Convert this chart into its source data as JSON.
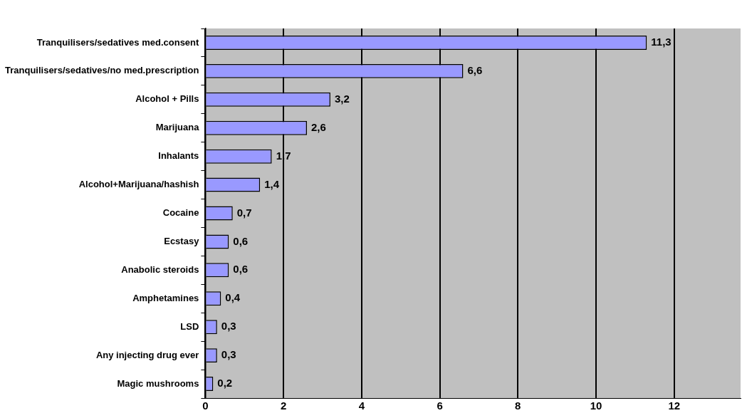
{
  "chart_data": {
    "type": "bar",
    "orientation": "horizontal",
    "categories": [
      "Tranquilisers/sedatives med.consent",
      "Tranquilisers/sedatives/no med.prescription",
      "Alcohol + Pills",
      "Marijuana",
      "Inhalants",
      "Alcohol+Marijuana/hashish",
      "Cocaine",
      "Ecstasy",
      "Anabolic steroids",
      "Amphetamines",
      "LSD",
      "Any injecting drug ever",
      "Magic mushrooms"
    ],
    "values": [
      11.3,
      6.6,
      3.2,
      2.6,
      1.7,
      1.4,
      0.7,
      0.6,
      0.6,
      0.4,
      0.3,
      0.3,
      0.2
    ],
    "value_labels": [
      "11,3",
      "6,6",
      "3,2",
      "2,6",
      "1,7",
      "1,4",
      "0,7",
      "0,6",
      "0,6",
      "0,4",
      "0,3",
      "0,3",
      "0,2"
    ],
    "color": "#9999ff",
    "xlim": [
      0,
      13.7
    ],
    "xticks": [
      0,
      2,
      4,
      6,
      8,
      10,
      12
    ],
    "grid": "x",
    "legend": false
  }
}
